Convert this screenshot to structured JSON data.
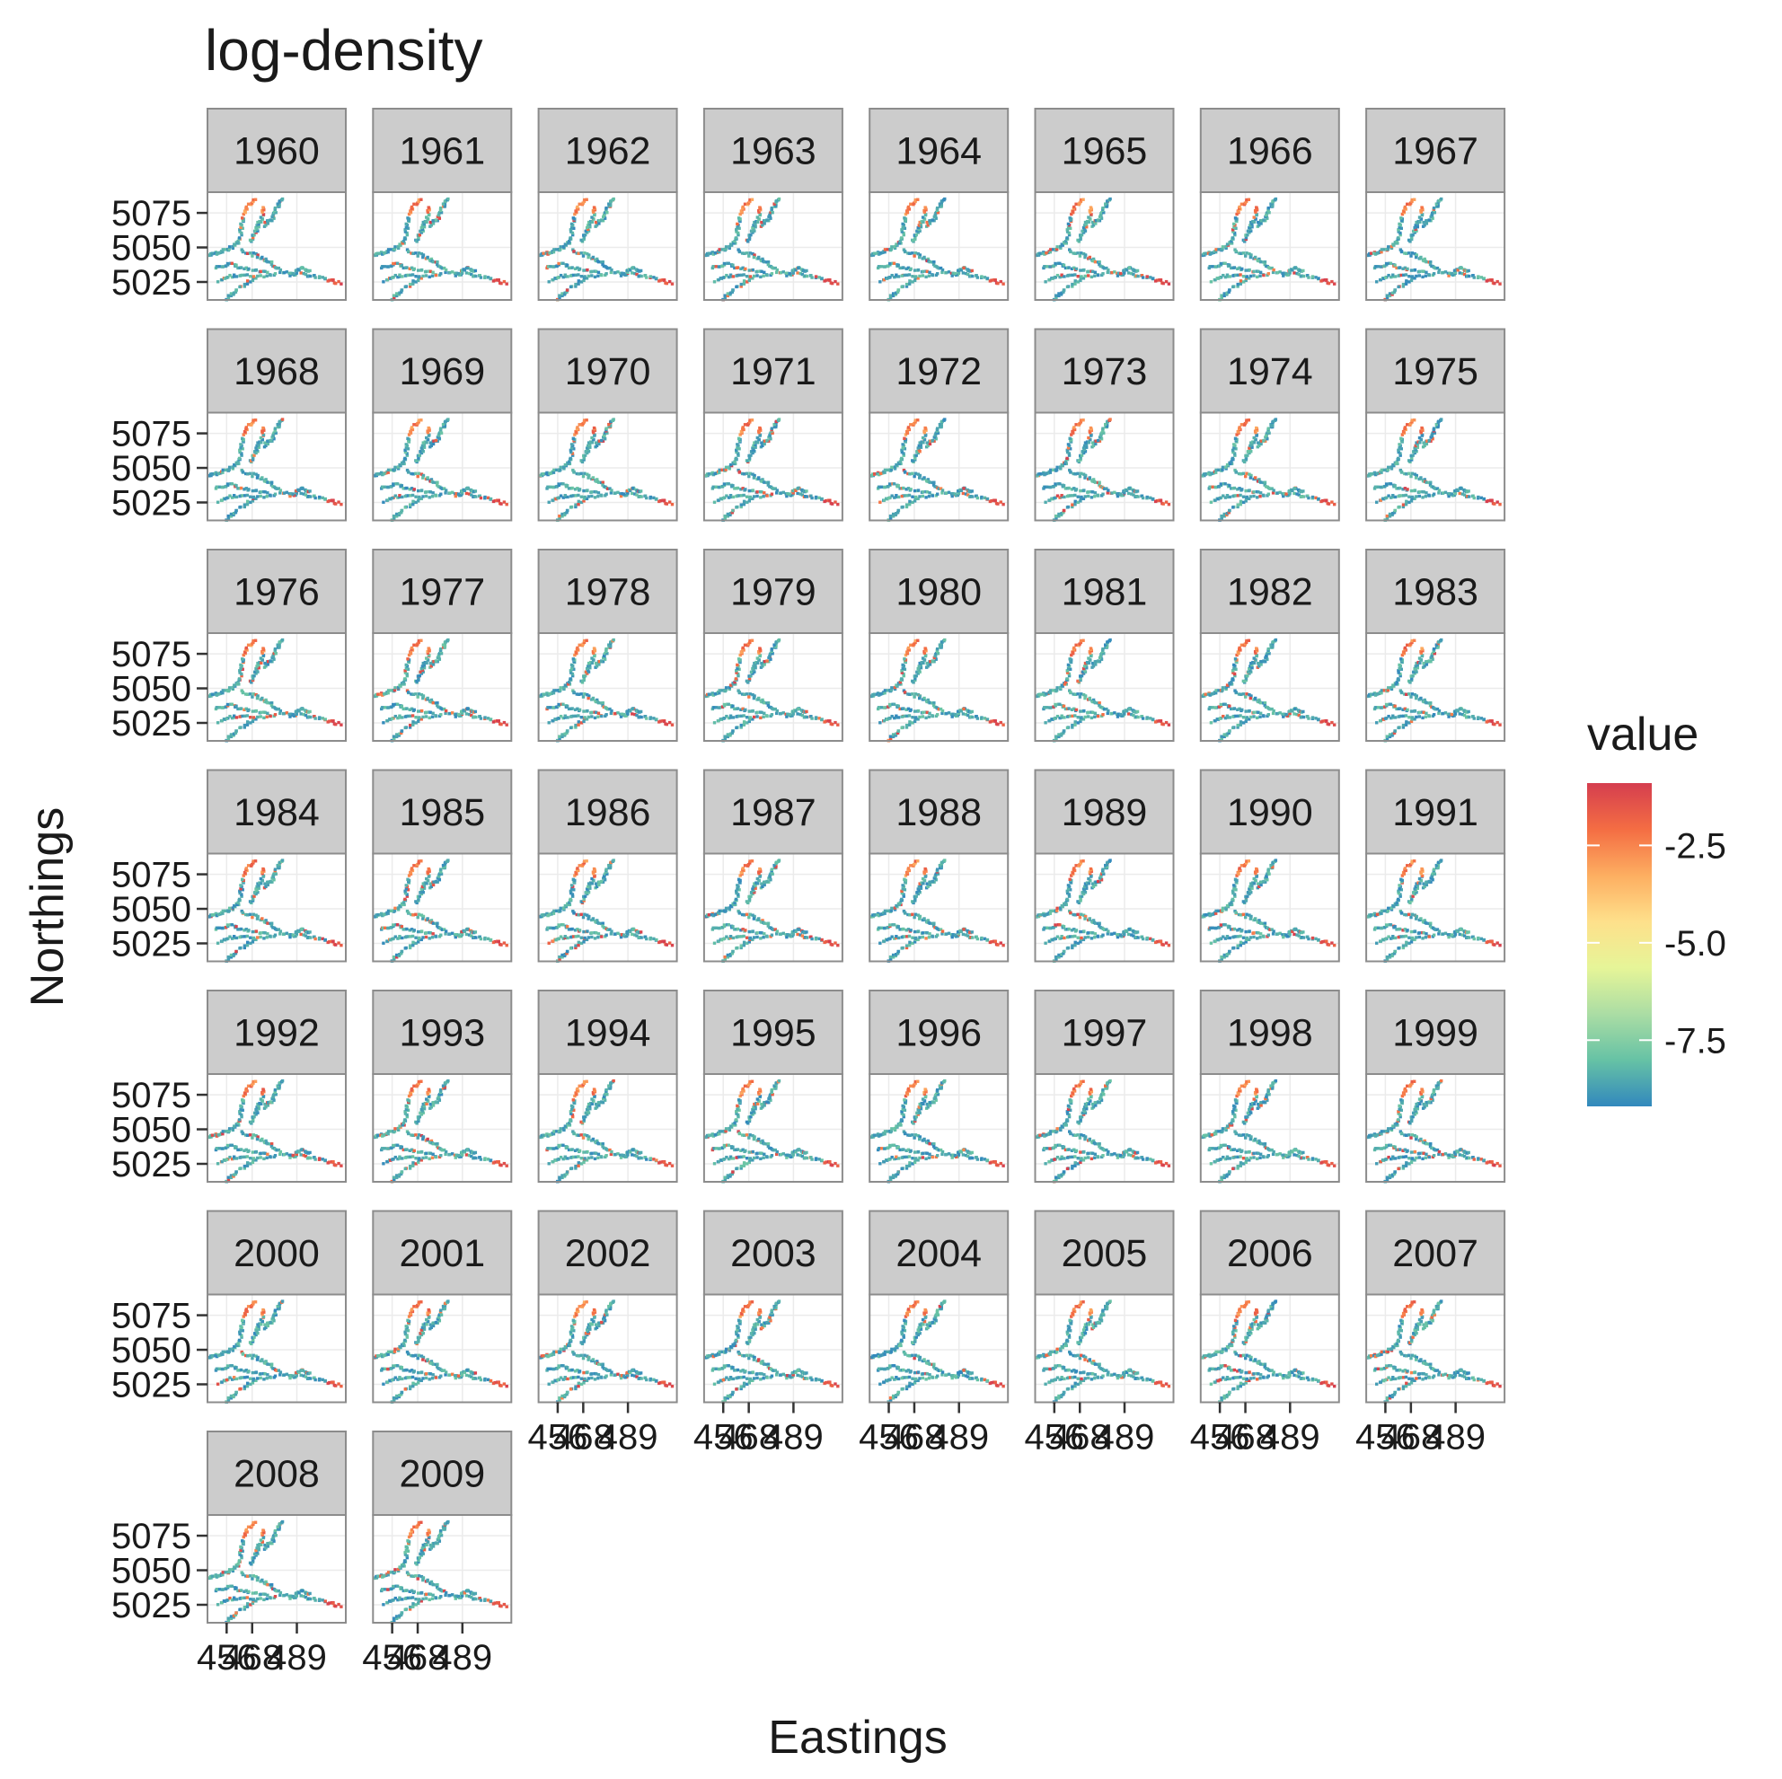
{
  "chart_data": {
    "type": "heatmap",
    "title": "log-density",
    "xlabel": "Eastings",
    "ylabel": "Northings",
    "facet_by": "year",
    "facets": [
      "1960",
      "1961",
      "1962",
      "1963",
      "1964",
      "1965",
      "1966",
      "1967",
      "1968",
      "1969",
      "1970",
      "1971",
      "1972",
      "1973",
      "1974",
      "1975",
      "1976",
      "1977",
      "1978",
      "1979",
      "1980",
      "1981",
      "1982",
      "1983",
      "1984",
      "1985",
      "1986",
      "1987",
      "1988",
      "1989",
      "1990",
      "1991",
      "1992",
      "1993",
      "1994",
      "1995",
      "1996",
      "1997",
      "1998",
      "1999",
      "2000",
      "2001",
      "2002",
      "2003",
      "2004",
      "2005",
      "2006",
      "2007",
      "2008",
      "2009"
    ],
    "y_ticks": [
      5075,
      5050,
      5025
    ],
    "ylim": [
      5012,
      5090
    ],
    "x_ticks": [
      456,
      468,
      489
    ],
    "x_tick_labels": [
      "456",
      "468",
      "489"
    ],
    "xlim": [
      447,
      512
    ],
    "legend": {
      "title": "value",
      "ticks": [
        -2.5,
        -5.0,
        -7.5
      ],
      "tick_labels": [
        "-2.5",
        "-5.0",
        "-7.5"
      ],
      "range": [
        -9.2,
        -0.9
      ],
      "colors": [
        "#3288bd",
        "#66c2a5",
        "#abdda4",
        "#e6f598",
        "#fee08b",
        "#fdae61",
        "#f46d43",
        "#d53e4f"
      ],
      "position": "right"
    },
    "grid": true
  }
}
